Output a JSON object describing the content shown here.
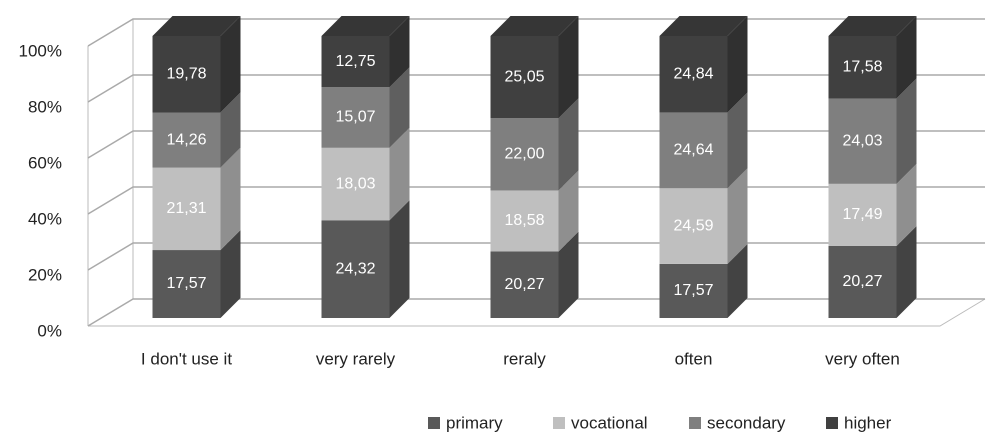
{
  "chart_data": {
    "type": "bar",
    "stacking": "percent",
    "categories": [
      "I don't use it",
      "very rarely",
      "reraly",
      "often",
      "very often"
    ],
    "series": [
      {
        "name": "primary",
        "color": "#595959",
        "values": [
          17.57,
          24.32,
          20.27,
          17.57,
          20.27
        ],
        "value_labels": [
          "17,57",
          "24,32",
          "20,27",
          "17,57",
          "20,27"
        ]
      },
      {
        "name": "vocational",
        "color": "#bfbfbf",
        "values": [
          21.31,
          18.03,
          18.58,
          24.59,
          17.49
        ],
        "value_labels": [
          "21,31",
          "18,03",
          "18,58",
          "24,59",
          "17,49"
        ]
      },
      {
        "name": "secondary",
        "color": "#7f7f7f",
        "values": [
          14.26,
          15.07,
          22.0,
          24.64,
          24.03
        ],
        "value_labels": [
          "14,26",
          "15,07",
          "22,00",
          "24,64",
          "24,03"
        ]
      },
      {
        "name": "higher",
        "color": "#404040",
        "values": [
          19.78,
          12.75,
          25.05,
          24.84,
          17.58
        ],
        "value_labels": [
          "19,78",
          "12,75",
          "25,05",
          "24,84",
          "17,58"
        ]
      }
    ],
    "ylim": [
      0,
      100
    ],
    "yticks": [
      {
        "value": 0,
        "label": "0%"
      },
      {
        "value": 20,
        "label": "20%"
      },
      {
        "value": 40,
        "label": "40%"
      },
      {
        "value": 60,
        "label": "60%"
      },
      {
        "value": 80,
        "label": "80%"
      },
      {
        "value": 100,
        "label": "100%"
      }
    ],
    "grid": true,
    "legend": "bottom"
  }
}
